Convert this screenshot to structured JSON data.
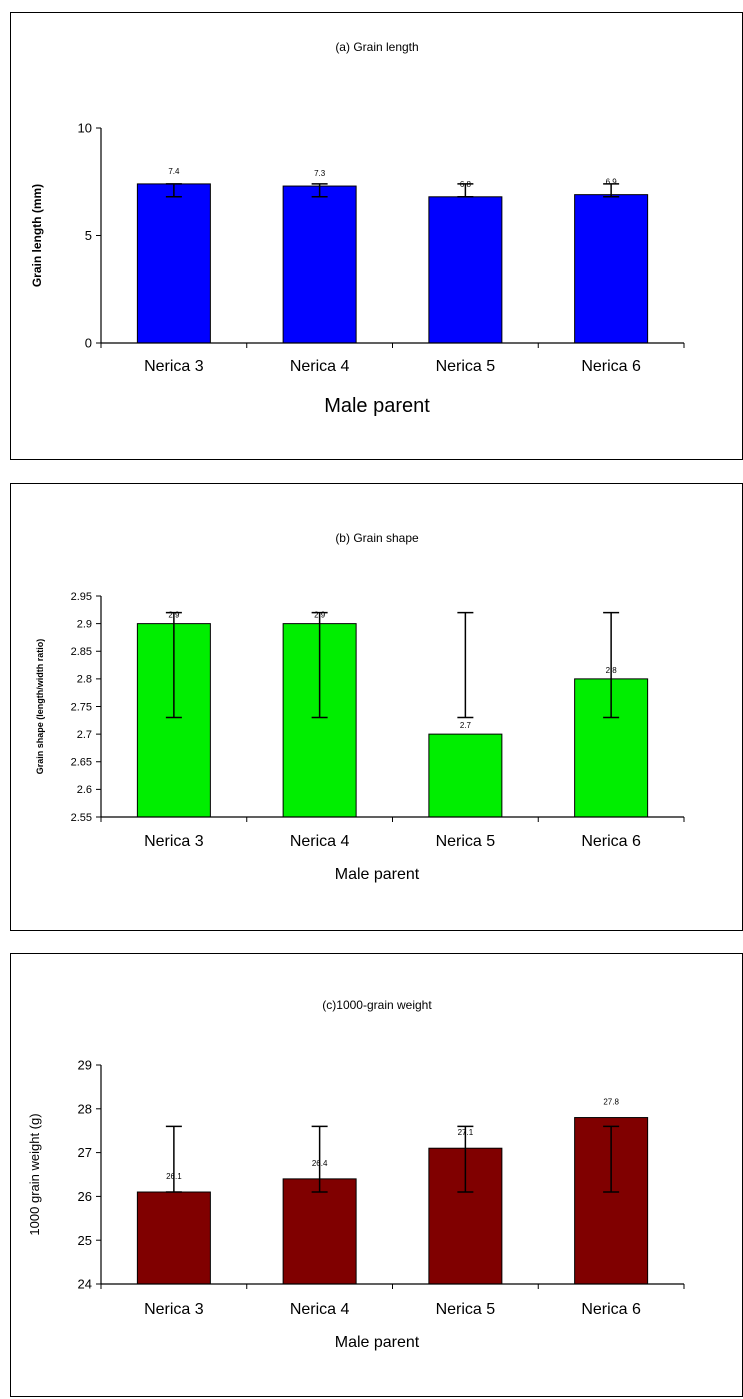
{
  "chart_data": [
    {
      "type": "bar",
      "title": "(a) Grain length",
      "xlabel": "Male parent",
      "ylabel": "Grain length (mm)",
      "categories": [
        "Nerica 3",
        "Nerica 4",
        "Nerica 5",
        "Nerica 6"
      ],
      "values": [
        7.4,
        7.3,
        6.8,
        6.9
      ],
      "data_labels": [
        "7.4",
        "7.3",
        "6.8",
        "6.9"
      ],
      "error_low": [
        6.8,
        6.8,
        6.8,
        6.8
      ],
      "error_high": [
        7.4,
        7.4,
        7.4,
        7.4
      ],
      "ylim": [
        0,
        10
      ],
      "yticks": [
        0,
        5,
        10
      ],
      "ytick_labels": [
        "0",
        "5",
        "10"
      ],
      "bar_color": "#0000ff",
      "grid": false
    },
    {
      "type": "bar",
      "title": "(b) Grain shape",
      "xlabel": "Male parent",
      "ylabel": "Grain shape (length/width ratio)",
      "categories": [
        "Nerica 3",
        "Nerica 4",
        "Nerica 5",
        "Nerica 6"
      ],
      "values": [
        2.9,
        2.9,
        2.7,
        2.8
      ],
      "data_labels": [
        "2.9",
        "2.9",
        "2.7",
        "2.8"
      ],
      "error_low": [
        2.73,
        2.73,
        2.73,
        2.73
      ],
      "error_high": [
        2.92,
        2.92,
        2.92,
        2.92
      ],
      "ylim": [
        2.55,
        2.95
      ],
      "yticks": [
        2.55,
        2.6,
        2.65,
        2.7,
        2.75,
        2.8,
        2.85,
        2.9,
        2.95
      ],
      "ytick_labels": [
        "2.55",
        "2.6",
        "2.65",
        "2.7",
        "2.75",
        "2.8",
        "2.85",
        "2.9",
        "2.95"
      ],
      "bar_color": "#00ee00",
      "grid": false
    },
    {
      "type": "bar",
      "title": "(c)1000-grain weight",
      "xlabel": "Male parent",
      "ylabel": "1000 grain weight (g)",
      "categories": [
        "Nerica 3",
        "Nerica 4",
        "Nerica 5",
        "Nerica 6"
      ],
      "values": [
        26.1,
        26.4,
        27.1,
        27.8
      ],
      "data_labels": [
        "26.1",
        "26.4",
        "27.1",
        "27.8"
      ],
      "error_low": [
        26.1,
        26.1,
        26.1,
        26.1
      ],
      "error_high": [
        27.6,
        27.6,
        27.6,
        27.6
      ],
      "ylim": [
        24,
        29
      ],
      "yticks": [
        24,
        25,
        26,
        27,
        28,
        29
      ],
      "ytick_labels": [
        "24",
        "25",
        "26",
        "27",
        "28",
        "29"
      ],
      "bar_color": "#800000",
      "grid": false
    }
  ]
}
